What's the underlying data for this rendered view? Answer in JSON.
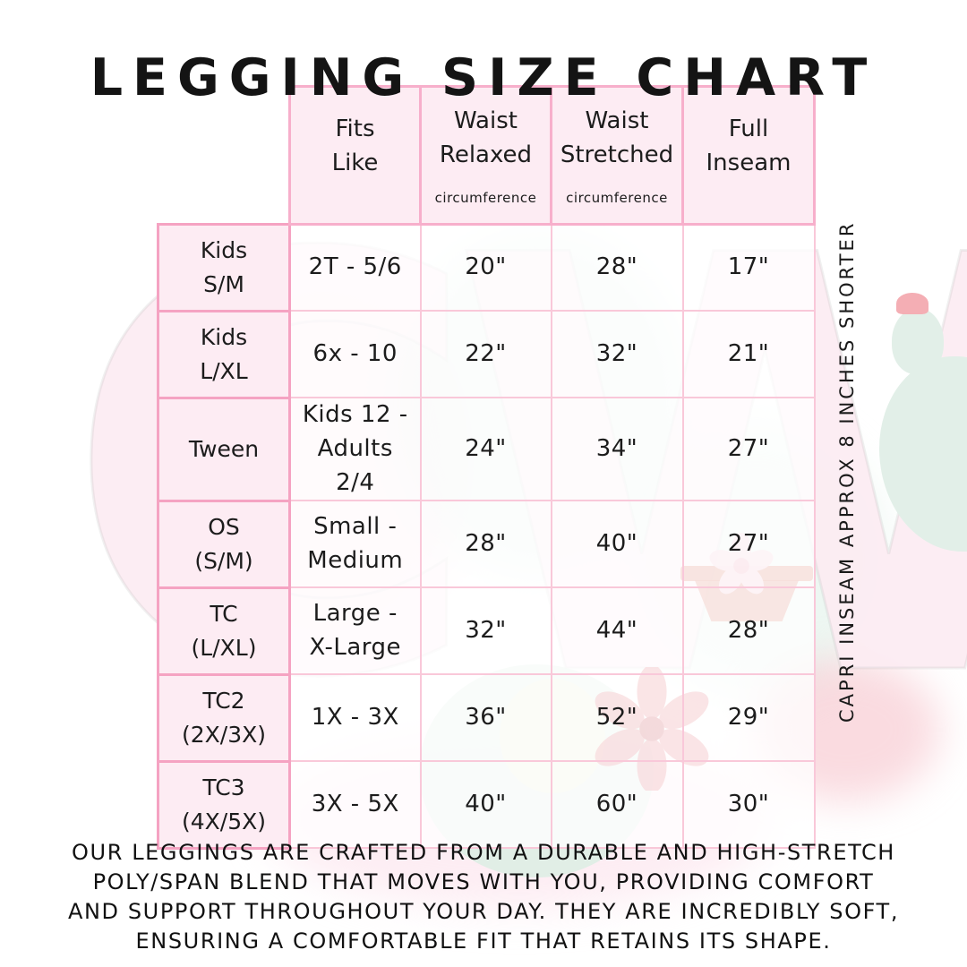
{
  "title": "LEGGING SIZE CHART",
  "watermark_text": "CW",
  "capri_note": "CAPRI INSEAM APPROX 8 INCHES SHORTER",
  "description": "OUR LEGGINGS ARE CRAFTED FROM A DURABLE AND HIGH-STRETCH\nPOLY/SPAN BLEND THAT MOVES WITH YOU, PROVIDING COMFORT\nAND SUPPORT THROUGHOUT YOUR DAY. THEY ARE INCREDIBLY SOFT,\nENSURING A COMFORTABLE FIT THAT RETAINS ITS SHAPE.",
  "colors": {
    "border_strong": "#f5a3c2",
    "border_header": "#f7afcb",
    "border_light": "#f9c8d9",
    "cell_pink": "#fdecf3",
    "text": "#1c1c1c",
    "mint": "#e2efe8",
    "red_flower": "#e0545e",
    "pink_flower": "#f7cdd9"
  },
  "table": {
    "headers": [
      {
        "title": "Fits\nLike",
        "sub": ""
      },
      {
        "title": "Waist\nRelaxed",
        "sub": "circumference"
      },
      {
        "title": "Waist\nStretched",
        "sub": "circumference"
      },
      {
        "title": "Full\nInseam",
        "sub": ""
      }
    ],
    "rows": [
      [
        "Kids\nS/M",
        "2T - 5/6",
        "20\"",
        "28\"",
        "17\""
      ],
      [
        "Kids\nL/XL",
        "6x - 10",
        "22\"",
        "32\"",
        "21\""
      ],
      [
        "Tween",
        "Kids 12 -\nAdults 2/4",
        "24\"",
        "34\"",
        "27\""
      ],
      [
        "OS\n(S/M)",
        "Small -\nMedium",
        "28\"",
        "40\"",
        "27\""
      ],
      [
        "TC\n(L/XL)",
        "Large -\nX-Large",
        "32\"",
        "44\"",
        "28\""
      ],
      [
        "TC2\n(2X/3X)",
        "1X - 3X",
        "36\"",
        "52\"",
        "29\""
      ],
      [
        "TC3\n(4X/5X)",
        "3X - 5X",
        "40\"",
        "60\"",
        "30\""
      ]
    ]
  },
  "chart_data": {
    "type": "table",
    "title": "LEGGING SIZE CHART",
    "columns": [
      "",
      "Fits Like",
      "Waist Relaxed circumference",
      "Waist Stretched circumference",
      "Full Inseam"
    ],
    "rows": [
      [
        "Kids S/M",
        "2T - 5/6",
        "20\"",
        "28\"",
        "17\""
      ],
      [
        "Kids L/XL",
        "6x - 10",
        "22\"",
        "32\"",
        "21\""
      ],
      [
        "Tween",
        "Kids 12 - Adults 2/4",
        "24\"",
        "34\"",
        "27\""
      ],
      [
        "OS (S/M)",
        "Small - Medium",
        "28\"",
        "40\"",
        "27\""
      ],
      [
        "TC (L/XL)",
        "Large - X-Large",
        "32\"",
        "44\"",
        "28\""
      ],
      [
        "TC2 (2X/3X)",
        "1X - 3X",
        "36\"",
        "52\"",
        "29\""
      ],
      [
        "TC3 (4X/5X)",
        "3X - 5X",
        "40\"",
        "60\"",
        "30\""
      ]
    ],
    "footnote": "CAPRI INSEAM APPROX 8 INCHES SHORTER"
  }
}
